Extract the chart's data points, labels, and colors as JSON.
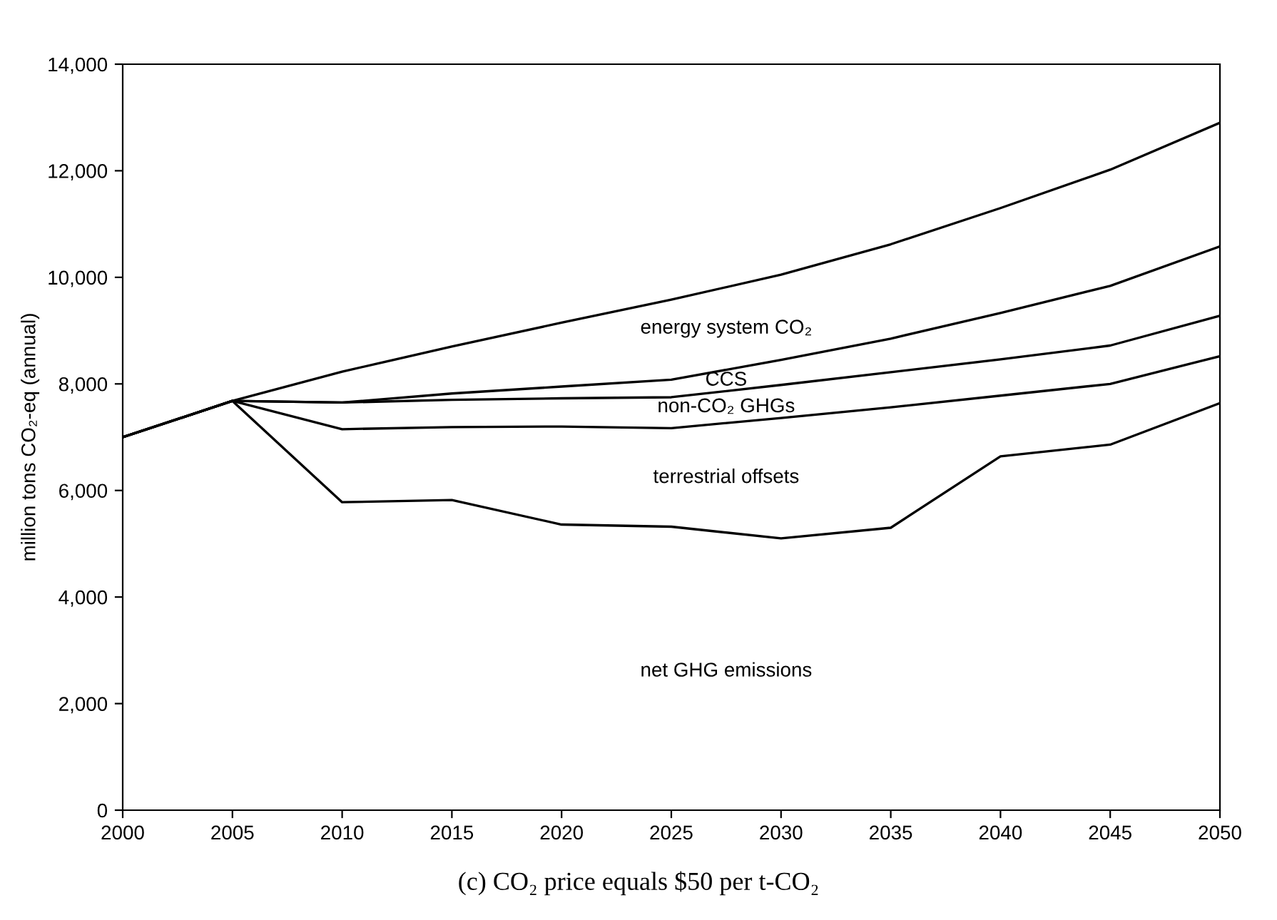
{
  "chart_data": {
    "type": "line",
    "ylabel": "million tons CO₂-eq (annual)",
    "x": [
      2000,
      2005,
      2010,
      2015,
      2020,
      2025,
      2030,
      2035,
      2040,
      2045,
      2050
    ],
    "series": [
      {
        "color": "#000000",
        "values": [
          7000,
          7680,
          8230,
          8700,
          9150,
          9580,
          10050,
          10620,
          11300,
          12020,
          12900
        ]
      },
      {
        "color": "#000000",
        "values": [
          7000,
          7680,
          7650,
          7820,
          7950,
          8080,
          8450,
          8850,
          9330,
          9840,
          10580
        ]
      },
      {
        "color": "#000000",
        "values": [
          7000,
          7680,
          7650,
          7700,
          7730,
          7750,
          7980,
          8220,
          8460,
          8720,
          9280
        ]
      },
      {
        "color": "#000000",
        "values": [
          7000,
          7680,
          7150,
          7190,
          7200,
          7170,
          7360,
          7560,
          7780,
          8000,
          8520
        ]
      },
      {
        "color": "#000000",
        "values": [
          7000,
          7680,
          5780,
          5820,
          5360,
          5320,
          5100,
          5300,
          6640,
          6860,
          7640
        ]
      }
    ],
    "annotations": [
      "energy system CO₂",
      "CCS",
      "non-CO₂ GHGs",
      "terrestrial offsets",
      "net GHG emissions",
      "(c) CO₂ price equals $50 per t-CO₂"
    ],
    "xlim": [
      2000,
      2050
    ],
    "xticks": [
      2000,
      2005,
      2010,
      2015,
      2020,
      2025,
      2030,
      2035,
      2040,
      2045,
      2050
    ],
    "ylim": [
      0,
      14000
    ],
    "yticks": [
      0,
      {
        "value": 2000,
        "label": "2,000"
      },
      {
        "value": 4000,
        "label": "4,000"
      },
      {
        "value": 6000,
        "label": "6,000"
      },
      {
        "value": 8000,
        "label": "8,000"
      },
      {
        "value": 10000,
        "label": "10,000"
      },
      {
        "value": 12000,
        "label": "12,000"
      },
      {
        "value": 14000,
        "label": "14,000"
      }
    ],
    "grid": false,
    "legend": false,
    "marker": "none",
    "line_style": "solid"
  }
}
